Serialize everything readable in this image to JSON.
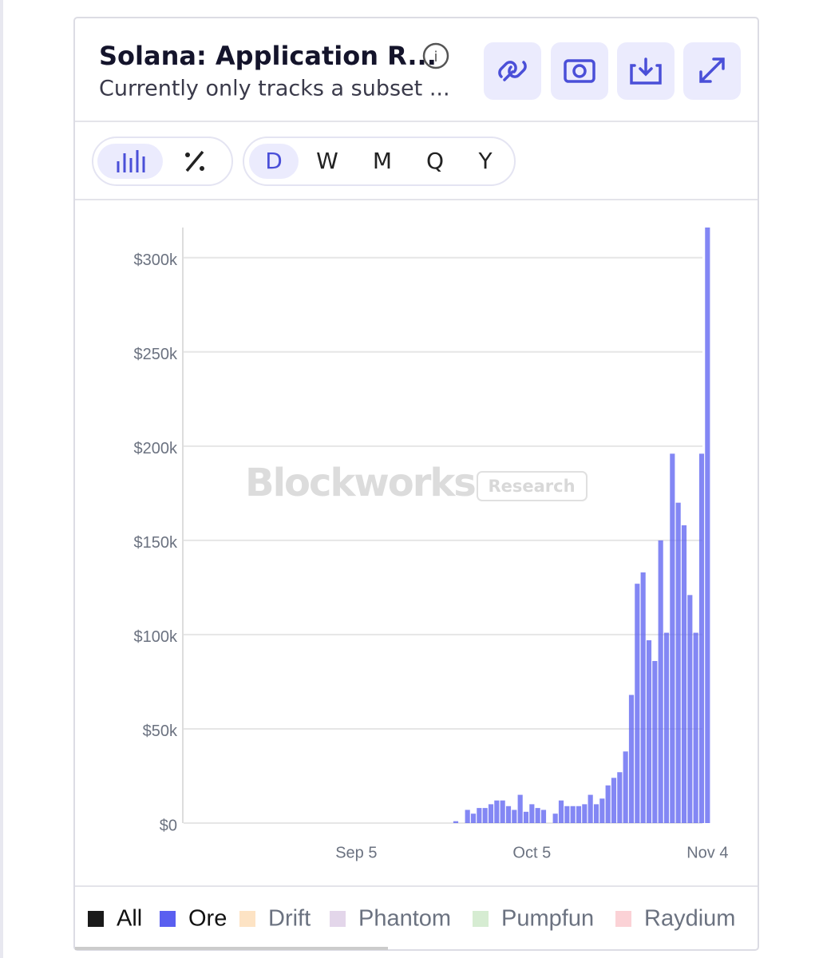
{
  "ui": {
    "title": "Solana: Application R...",
    "subtitle": "Currently only tracks a subset ...",
    "periods": [
      "D",
      "W",
      "M",
      "Q",
      "Y"
    ],
    "watermark": "Blockworks",
    "watermark_tag": "Research"
  },
  "chart_data": {
    "type": "bar",
    "categories": [
      null,
      null,
      null,
      null,
      null,
      null,
      null,
      null,
      null,
      null,
      null,
      null,
      null,
      null,
      null,
      null,
      null,
      null,
      null,
      null,
      null,
      null,
      null,
      null,
      null,
      null,
      null,
      null,
      null,
      "Sep 5",
      null,
      null,
      null,
      null,
      null,
      null,
      null,
      null,
      null,
      null,
      null,
      null,
      null,
      null,
      null,
      null,
      null,
      null,
      null,
      null,
      null,
      null,
      null,
      null,
      null,
      null,
      null,
      null,
      null,
      "Oct 5",
      null,
      null,
      null,
      null,
      null,
      null,
      null,
      null,
      null,
      null,
      null,
      null,
      null,
      null,
      null,
      null,
      null,
      null,
      null,
      null,
      null,
      null,
      null,
      null,
      null,
      null,
      null,
      null,
      null,
      "Nov 4"
    ],
    "series": [
      {
        "name": "All",
        "color": "#1a1a1a"
      },
      {
        "name": "Ore",
        "color": "#5a5ff0",
        "values": [
          0,
          0,
          0,
          0,
          0,
          0,
          0,
          0,
          0,
          0,
          0,
          0,
          0,
          0,
          0,
          0,
          0,
          0,
          0,
          0,
          0,
          0,
          0,
          0,
          0,
          0,
          0,
          0,
          0,
          0,
          0,
          0,
          0,
          0,
          0,
          0,
          0,
          0,
          0,
          0,
          0,
          0,
          0,
          0,
          0,
          0,
          1000,
          0,
          7000,
          5000,
          8000,
          8000,
          10000,
          12000,
          12000,
          9000,
          7000,
          15000,
          6000,
          10000,
          8000,
          7000,
          0,
          5000,
          12000,
          9000,
          9000,
          9000,
          10000,
          15000,
          10000,
          13000,
          20000,
          24000,
          27000,
          38000,
          68000,
          127000,
          133000,
          97000,
          86000,
          150000,
          101000,
          196000,
          170000,
          158000,
          121000,
          101000,
          196000,
          316000
        ]
      },
      {
        "name": "Drift",
        "color": "#fde3c4"
      },
      {
        "name": "Phantom",
        "color": "#e3d6ea"
      },
      {
        "name": "Pumpfun",
        "color": "#d6ecd2"
      },
      {
        "name": "Raydium",
        "color": "#fbd2d6"
      }
    ],
    "ylim": [
      0,
      316000
    ],
    "yticks": [
      {
        "value": 0,
        "label": "$0"
      },
      {
        "value": 50000,
        "label": "$50k"
      },
      {
        "value": 100000,
        "label": "$100k"
      },
      {
        "value": 150000,
        "label": "$150k"
      },
      {
        "value": 200000,
        "label": "$200k"
      },
      {
        "value": 250000,
        "label": "$250k"
      },
      {
        "value": 300000,
        "label": "$300k"
      }
    ],
    "grid": true
  }
}
